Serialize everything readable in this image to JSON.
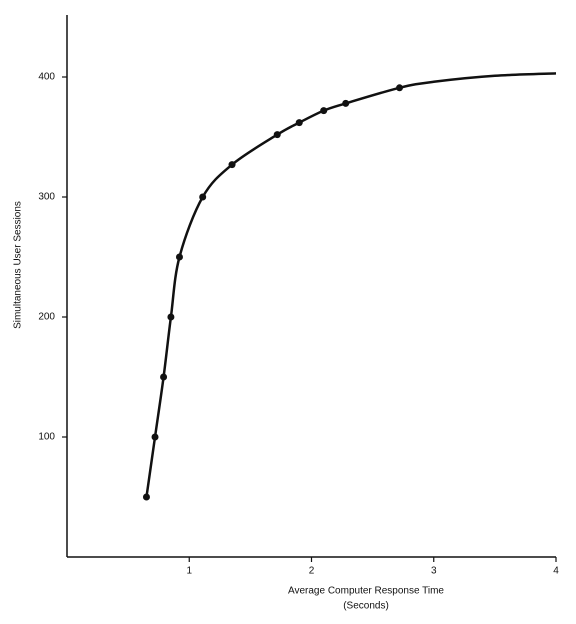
{
  "chart_data": {
    "type": "line",
    "xlabel": [
      "Average Computer Response Time",
      "(Seconds)"
    ],
    "ylabel": "Simultaneous User Sessions",
    "xlim": [
      0,
      4
    ],
    "ylim": [
      0,
      450
    ],
    "xticks": [
      1,
      2,
      3,
      4
    ],
    "yticks": [
      100,
      200,
      300,
      400
    ],
    "series": [
      {
        "color": "#111111",
        "marker": false,
        "x": [
          0.65,
          0.72,
          0.79,
          0.85,
          0.92,
          1.11,
          1.35,
          1.72,
          1.9,
          2.1,
          2.28,
          2.72,
          3.0,
          3.5,
          4.0
        ],
        "values": [
          50,
          100,
          150,
          200,
          250,
          300,
          327,
          352,
          362,
          372,
          378,
          391,
          396,
          401,
          403
        ]
      },
      {
        "color": "#111111",
        "marker": true,
        "x": [
          0.65,
          0.72,
          0.79,
          0.85,
          0.92,
          1.11,
          1.35,
          1.72,
          1.9,
          2.1,
          2.28,
          2.72
        ],
        "values": [
          50,
          100,
          150,
          200,
          250,
          300,
          327,
          352,
          362,
          372,
          378,
          391
        ]
      }
    ]
  }
}
